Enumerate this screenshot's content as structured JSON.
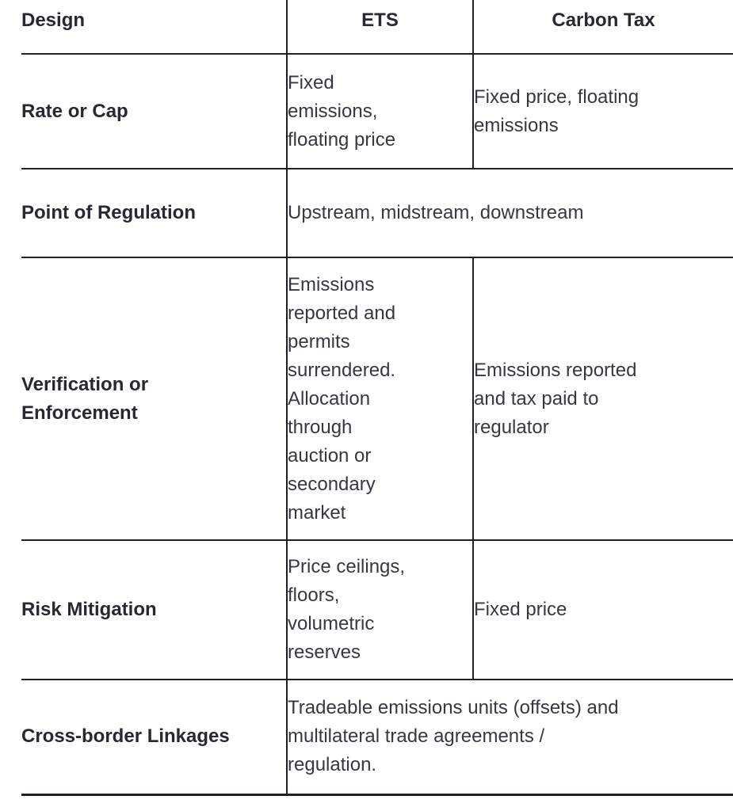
{
  "table": {
    "header": {
      "design": "Design",
      "ets": "ETS",
      "carbon_tax": "Carbon Tax"
    },
    "rows": [
      {
        "label": "Rate or Cap",
        "ets": "Fixed\nemissions,\nfloating price",
        "carbon_tax": "Fixed price, floating\nemissions"
      },
      {
        "label": "Point of Regulation",
        "combined": "Upstream, midstream, downstream"
      },
      {
        "label": "Verification or\nEnforcement",
        "ets": "Emissions\nreported and\npermits\nsurrendered.\nAllocation\nthrough\nauction or\nsecondary\nmarket",
        "carbon_tax": "Emissions reported\nand tax paid to\nregulator"
      },
      {
        "label": "Risk Mitigation",
        "ets": "Price ceilings,\nfloors,\nvolumetric\nreserves",
        "carbon_tax": "Fixed price"
      },
      {
        "label": "Cross-border Linkages",
        "combined": "Tradeable emissions units (offsets) and\nmultilateral trade agreements /\nregulation."
      }
    ],
    "colors": {
      "border": "#1e2025",
      "header_text": "#26292f",
      "body_text": "#35393f",
      "background": "#ffffff"
    }
  }
}
